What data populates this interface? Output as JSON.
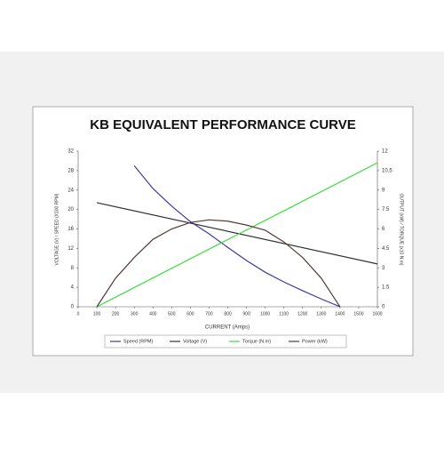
{
  "chart_data": {
    "type": "line",
    "title": "KB EQUIVALENT PERFORMANCE CURVE",
    "x_label": "CURRENT (Amps)",
    "y_label": "VOLTAGE (V) / SPEED (X100 RPM)",
    "y2_label": "OUTPUT (kW) / TORQUE (x10 N.m)",
    "xlim": [
      0,
      1600
    ],
    "xticks": [
      0,
      100,
      200,
      300,
      400,
      500,
      600,
      700,
      800,
      900,
      1000,
      1100,
      1200,
      1300,
      1400,
      1500,
      1600
    ],
    "ylim": [
      0,
      32
    ],
    "yticks": [
      0,
      4,
      8,
      12,
      16,
      20,
      24,
      28,
      32
    ],
    "y2lim": [
      0,
      12
    ],
    "y2ticks": [
      0,
      1.5,
      3,
      4.5,
      6,
      7.5,
      9,
      10.5,
      12
    ],
    "series": [
      {
        "name": "Speed (RPM)",
        "color": "#3a3aa8",
        "x": [
          300,
          400,
          500,
          600,
          700,
          800,
          900,
          1000,
          1100,
          1200,
          1300,
          1400
        ],
        "values": [
          29,
          24.3,
          20.7,
          17.5,
          15,
          12.2,
          9.5,
          7.1,
          5.1,
          3.3,
          1.6,
          0
        ]
      },
      {
        "name": "Voltage (V)",
        "color": "#333333",
        "x": [
          100,
          1600
        ],
        "values": [
          21.4,
          8.8
        ]
      },
      {
        "name": "Torque (N.m)",
        "color": "#3cdc3c",
        "axis": "y2",
        "x": [
          100,
          1600
        ],
        "values": [
          0,
          11.1
        ]
      },
      {
        "name": "Power (kW)",
        "color": "#553a3a",
        "axis": "y2",
        "x": [
          100,
          200,
          300,
          400,
          500,
          600,
          700,
          800,
          900,
          1000,
          1100,
          1200,
          1300,
          1400
        ],
        "values": [
          0,
          2.2,
          3.8,
          5.2,
          6.0,
          6.5,
          6.7,
          6.6,
          6.3,
          5.9,
          5.0,
          3.8,
          2.2,
          0
        ]
      }
    ]
  }
}
